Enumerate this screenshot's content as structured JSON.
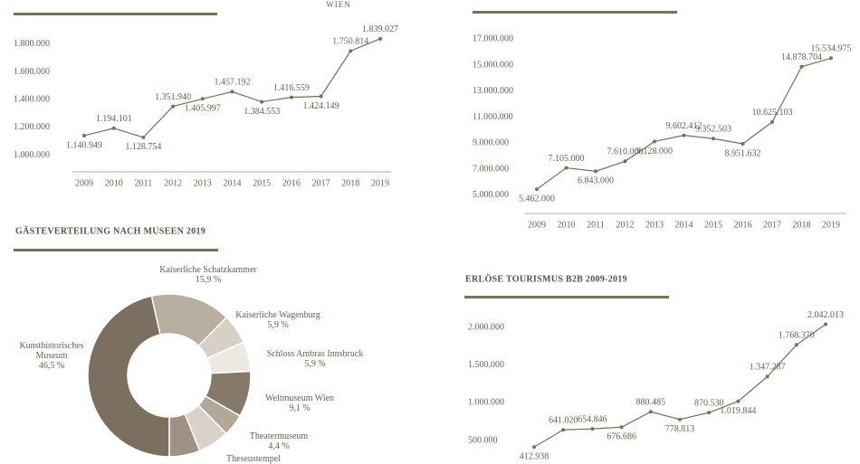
{
  "logo_text": "WIEN",
  "chart_data": [
    {
      "type": "line",
      "categories": [
        "2009",
        "2010",
        "2011",
        "2012",
        "2013",
        "2014",
        "2015",
        "2016",
        "2017",
        "2018",
        "2019"
      ],
      "values": [
        1140949,
        1194101,
        1128754,
        1351940,
        1405997,
        1457192,
        1384553,
        1416559,
        1424149,
        1750814,
        1839027
      ],
      "value_labels": [
        "1.140.949",
        "1.194.101",
        "1.128.754",
        "1.351.940",
        "1.405.997",
        "1.457.192",
        "1.384.553",
        "1.416.559",
        "1.424.149",
        "1.750.814",
        "1.839.027"
      ],
      "color": "#7a6e5d",
      "ylim": [
        880000,
        1890000
      ],
      "yticks": [
        {
          "value": 1000000,
          "label": "1.000.000"
        },
        {
          "value": 1200000,
          "label": "1.200.000"
        },
        {
          "value": 1400000,
          "label": "1.400.000"
        },
        {
          "value": 1600000,
          "label": "1.600.000"
        },
        {
          "value": 1800000,
          "label": "1.800.000"
        }
      ],
      "grid": false
    },
    {
      "type": "line",
      "categories": [
        "2009",
        "2010",
        "2011",
        "2012",
        "2013",
        "2014",
        "2015",
        "2016",
        "2017",
        "2018",
        "2019"
      ],
      "values": [
        5462000,
        7105000,
        6843000,
        7610000,
        9128000,
        9602412,
        9352503,
        8951632,
        10625103,
        14878704,
        15534975
      ],
      "value_labels": [
        "5.462.000",
        "7.105.000",
        "6.843.000",
        "7.610.000",
        "9.128.000",
        "9.602.412",
        "9.352.503",
        "8.951.632",
        "10.625.103",
        "14.878.704",
        "15.534.975"
      ],
      "color": "#7a6e5d",
      "ylim": [
        3600000,
        17500000
      ],
      "yticks": [
        {
          "value": 5000000,
          "label": "5.000.000"
        },
        {
          "value": 7000000,
          "label": "7.000.000"
        },
        {
          "value": 9000000,
          "label": "9.000.000"
        },
        {
          "value": 11000000,
          "label": "11.000.000"
        },
        {
          "value": 13000000,
          "label": "13.000.000"
        },
        {
          "value": 15000000,
          "label": "15.000.000"
        },
        {
          "value": 17000000,
          "label": "17.000.000"
        }
      ],
      "grid": false
    },
    {
      "type": "donut",
      "title": "GÄSTEVERTEILUNG NACH MUSEEN 2019",
      "categories": [
        "Kaiserliche Schatzkammer",
        "Kaiserliche Wagenburg",
        "Schloss Ambras Innsbruck",
        "Weltmuseum Wien",
        "Theatermuseum",
        "Theseustempel",
        null,
        "Kunsthistorisches Museum"
      ],
      "values": [
        15.9,
        5.9,
        5.9,
        9.1,
        4.4,
        6.2,
        6.1,
        46.5
      ],
      "value_labels": [
        "15,9 %",
        "5,9 %",
        "5,9 %",
        "9,1 %",
        "4,4 %",
        null,
        null,
        "46,5 %"
      ],
      "colors": [
        "#b9af a1",
        "#d7d0c6",
        "#ece8e2",
        "#85796a",
        "#b3a898",
        "#d9d2c8",
        "#9d9284",
        "#7b6f60"
      ]
    },
    {
      "type": "line",
      "title": "ERLÖSE TOURISMUS B2B 2009-2019",
      "categories": [
        null,
        null,
        null,
        null,
        null,
        null,
        null,
        null,
        null,
        null,
        null
      ],
      "values": [
        412938,
        641020,
        654846,
        676686,
        880485,
        778813,
        870530,
        1019844,
        1347287,
        1768370,
        2042013
      ],
      "value_labels": [
        "412.938",
        "641.020",
        "654.846",
        "676.686",
        "880.485",
        "778.813",
        "870.530",
        "1.019.844",
        "1.347.287",
        "1.768.370",
        "2.042.013"
      ],
      "color": "#7a6e5d",
      "ylim": [
        200000,
        2150000
      ],
      "yticks": [
        {
          "value": 500000,
          "label": "500.000"
        },
        {
          "value": 1000000,
          "label": "1.000.000"
        },
        {
          "value": 1500000,
          "label": "1.500.000"
        },
        {
          "value": 2000000,
          "label": "2.000.000"
        }
      ],
      "grid": false
    }
  ]
}
